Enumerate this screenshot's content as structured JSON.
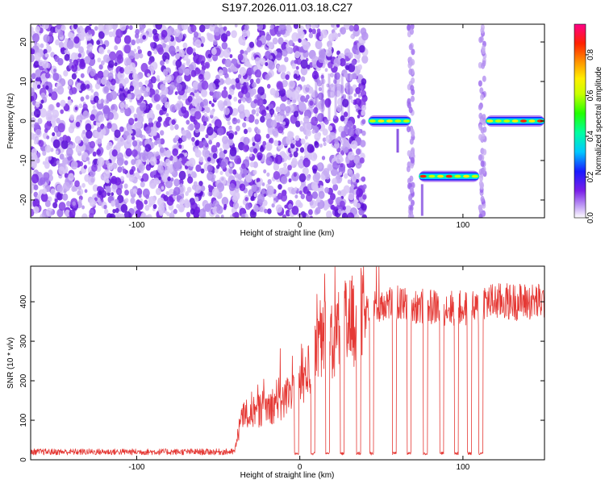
{
  "page": {
    "title": "S197.2026.011.03.18.C27"
  },
  "chart_data": [
    {
      "type": "heatmap",
      "title": "S197.2026.011.03.18.C27",
      "xlabel": "Height of straight line (km)",
      "ylabel": "Frequency (Hz)",
      "xlim": [
        -165,
        150
      ],
      "ylim": [
        -24.5,
        24.5
      ],
      "xticks": [
        -100,
        0,
        100
      ],
      "yticks": [
        -20,
        -10,
        0,
        10,
        20
      ],
      "colorbar": {
        "label": "Normalized spectral amplitude",
        "range": [
          0,
          0.95
        ],
        "ticks": [
          0.0,
          0.2,
          0.4,
          0.6,
          0.8
        ]
      },
      "noise_region": [
        -165,
        40
      ],
      "vertical_bands": [
        68,
        112
      ],
      "tone_segments": [
        {
          "x": [
            42,
            68
          ],
          "freq": 0
        },
        {
          "x": [
            73,
            110
          ],
          "freq": -14
        },
        {
          "x": [
            114,
            150
          ],
          "freq": 0
        }
      ]
    },
    {
      "type": "line",
      "xlabel": "Height of straight line (km)",
      "ylabel": "SNR (10 * v/v)",
      "xlim": [
        -165,
        150
      ],
      "ylim": [
        0,
        490
      ],
      "xticks": [
        -100,
        0,
        100
      ],
      "yticks": [
        0,
        100,
        200,
        300,
        400
      ],
      "line_color": "#e53935",
      "series": [
        {
          "name": "SNR",
          "segments": [
            {
              "x": -165,
              "y": 20
            },
            {
              "x": -40,
              "y": 20
            },
            {
              "x": -35,
              "y": 110
            },
            {
              "x": -10,
              "y": 150
            },
            {
              "x": 5,
              "y": 220
            },
            {
              "x": 15,
              "y": 300
            },
            {
              "x": 30,
              "y": 340
            },
            {
              "x": 50,
              "y": 400
            },
            {
              "x": 70,
              "y": 390
            },
            {
              "x": 110,
              "y": 380
            },
            {
              "x": 112,
              "y": 400
            },
            {
              "x": 150,
              "y": 400
            }
          ]
        }
      ],
      "dropouts": [
        -2,
        8,
        17,
        26,
        36,
        44,
        58,
        67,
        77,
        87,
        96,
        104,
        111
      ]
    }
  ]
}
